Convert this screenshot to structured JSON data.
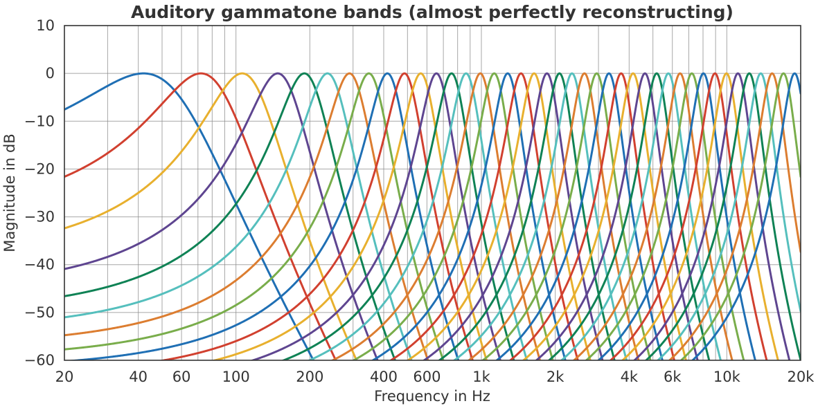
{
  "chart_data": {
    "type": "line",
    "title": "Auditory gammatone bands (almost perfectly reconstructing)",
    "xlabel": "Frequency in Hz",
    "ylabel": "Magnitude in dB",
    "x_scale": "log",
    "xlim": [
      20,
      20000
    ],
    "ylim": [
      -60,
      10
    ],
    "grid": true,
    "legend": "none",
    "xticks": [
      {
        "value": 20,
        "label": "20"
      },
      {
        "value": 40,
        "label": "40"
      },
      {
        "value": 60,
        "label": "60"
      },
      {
        "value": 100,
        "label": "100"
      },
      {
        "value": 200,
        "label": "200"
      },
      {
        "value": 400,
        "label": "400"
      },
      {
        "value": 600,
        "label": "600"
      },
      {
        "value": 1000,
        "label": "1k"
      },
      {
        "value": 2000,
        "label": "2k"
      },
      {
        "value": 4000,
        "label": "4k"
      },
      {
        "value": 6000,
        "label": "6k"
      },
      {
        "value": 10000,
        "label": "10k"
      },
      {
        "value": 20000,
        "label": "20k"
      }
    ],
    "x_minor_gridlines": [
      30,
      50,
      70,
      80,
      90,
      300,
      500,
      700,
      800,
      900,
      3000,
      5000,
      7000,
      8000,
      9000
    ],
    "yticks": [
      {
        "value": 10,
        "label": "10"
      },
      {
        "value": 0,
        "label": "0"
      },
      {
        "value": -10,
        "label": "−10"
      },
      {
        "value": -20,
        "label": "−20"
      },
      {
        "value": -30,
        "label": "−30"
      },
      {
        "value": -40,
        "label": "−40"
      },
      {
        "value": -50,
        "label": "−50"
      },
      {
        "value": -60,
        "label": "−60"
      }
    ],
    "band_peak_db": 0,
    "filter_order": 4,
    "colors": [
      "#1f6fb4",
      "#d1402f",
      "#e8b02e",
      "#5e4590",
      "#0f8255",
      "#55bfbd",
      "#dc7d30",
      "#79ad4b"
    ],
    "series": [
      {
        "center_hz": 42
      },
      {
        "center_hz": 72
      },
      {
        "center_hz": 106
      },
      {
        "center_hz": 148
      },
      {
        "center_hz": 190
      },
      {
        "center_hz": 236
      },
      {
        "center_hz": 290
      },
      {
        "center_hz": 348
      },
      {
        "center_hz": 414
      },
      {
        "center_hz": 486
      },
      {
        "center_hz": 566
      },
      {
        "center_hz": 656
      },
      {
        "center_hz": 756
      },
      {
        "center_hz": 866
      },
      {
        "center_hz": 990
      },
      {
        "center_hz": 1128
      },
      {
        "center_hz": 1280
      },
      {
        "center_hz": 1450
      },
      {
        "center_hz": 1640
      },
      {
        "center_hz": 1850
      },
      {
        "center_hz": 2080
      },
      {
        "center_hz": 2340
      },
      {
        "center_hz": 2630
      },
      {
        "center_hz": 2950
      },
      {
        "center_hz": 3310
      },
      {
        "center_hz": 3710
      },
      {
        "center_hz": 4150
      },
      {
        "center_hz": 4640
      },
      {
        "center_hz": 5180
      },
      {
        "center_hz": 5780
      },
      {
        "center_hz": 6450
      },
      {
        "center_hz": 7200
      },
      {
        "center_hz": 8030
      },
      {
        "center_hz": 8950
      },
      {
        "center_hz": 9970
      },
      {
        "center_hz": 11100
      },
      {
        "center_hz": 12350
      },
      {
        "center_hz": 13750
      },
      {
        "center_hz": 15300
      },
      {
        "center_hz": 17020
      },
      {
        "center_hz": 18900
      }
    ]
  }
}
